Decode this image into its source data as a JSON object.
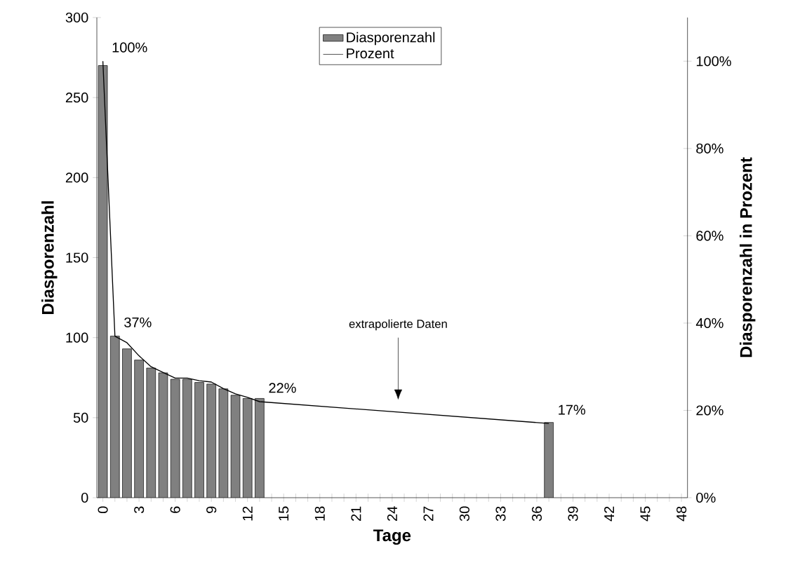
{
  "chart_data": {
    "type": "bar",
    "xlabel": "Tage",
    "ylabel": "Diasporenzahl",
    "y2label": "Diasporenzahl in Prozent",
    "xlim": [
      -0.5,
      48.5
    ],
    "xticks": [
      0,
      {
        "value": 1,
        "label": null
      },
      {
        "value": 2,
        "label": null
      },
      3,
      {
        "value": 4,
        "label": null
      },
      {
        "value": 5,
        "label": null
      },
      6,
      {
        "value": 7,
        "label": null
      },
      {
        "value": 8,
        "label": null
      },
      9,
      {
        "value": 10,
        "label": null
      },
      {
        "value": 11,
        "label": null
      },
      12,
      {
        "value": 13,
        "label": null
      },
      {
        "value": 14,
        "label": null
      },
      15,
      {
        "value": 16,
        "label": null
      },
      {
        "value": 17,
        "label": null
      },
      18,
      {
        "value": 19,
        "label": null
      },
      {
        "value": 20,
        "label": null
      },
      21,
      {
        "value": 22,
        "label": null
      },
      {
        "value": 23,
        "label": null
      },
      24,
      {
        "value": 25,
        "label": null
      },
      {
        "value": 26,
        "label": null
      },
      27,
      {
        "value": 28,
        "label": null
      },
      {
        "value": 29,
        "label": null
      },
      30,
      {
        "value": 31,
        "label": null
      },
      {
        "value": 32,
        "label": null
      },
      33,
      {
        "value": 34,
        "label": null
      },
      {
        "value": 35,
        "label": null
      },
      36,
      {
        "value": 37,
        "label": null
      },
      {
        "value": 38,
        "label": null
      },
      39,
      {
        "value": 40,
        "label": null
      },
      {
        "value": 41,
        "label": null
      },
      42,
      {
        "value": 43,
        "label": null
      },
      {
        "value": 44,
        "label": null
      },
      45,
      {
        "value": 46,
        "label": null
      },
      {
        "value": 47,
        "label": null
      },
      48
    ],
    "ylim": [
      0,
      300
    ],
    "yticks": [
      0,
      50,
      100,
      150,
      200,
      250,
      300
    ],
    "y2lim": [
      0,
      110
    ],
    "y2ticks": [
      {
        "value": 0,
        "label": "0%"
      },
      {
        "value": 20,
        "label": "20%"
      },
      {
        "value": 40,
        "label": "40%"
      },
      {
        "value": 60,
        "label": "60%"
      },
      {
        "value": 80,
        "label": "80%"
      },
      {
        "value": 100,
        "label": "100%"
      }
    ],
    "series": [
      {
        "name": "Diasporenzahl",
        "color": "#808080",
        "x": [
          0,
          1,
          2,
          3,
          4,
          5,
          6,
          7,
          8,
          9,
          10,
          11,
          12,
          13,
          37
        ],
        "values": [
          270,
          101,
          93,
          86,
          81,
          78,
          74,
          74,
          72,
          71,
          68,
          64,
          62,
          62,
          47
        ]
      },
      {
        "name": "Prozent",
        "type": "line",
        "axis": "y2",
        "color": "#000000",
        "x": [
          0,
          1,
          2,
          3,
          4,
          5,
          6,
          7,
          8,
          9,
          10,
          11,
          12,
          13,
          37
        ],
        "values": [
          100,
          37,
          35.5,
          32.5,
          30,
          28.7,
          27.4,
          27.4,
          26.8,
          26.5,
          25,
          23.8,
          23,
          22,
          17
        ],
        "value_labels": [
          "100%",
          "37%",
          null,
          null,
          null,
          null,
          null,
          null,
          null,
          null,
          null,
          null,
          null,
          "22%",
          "17%"
        ]
      }
    ],
    "annotations": [
      "extrapolierte Daten"
    ],
    "legend": "top",
    "grid": false,
    "marker": "none",
    "line_style": "solid"
  }
}
